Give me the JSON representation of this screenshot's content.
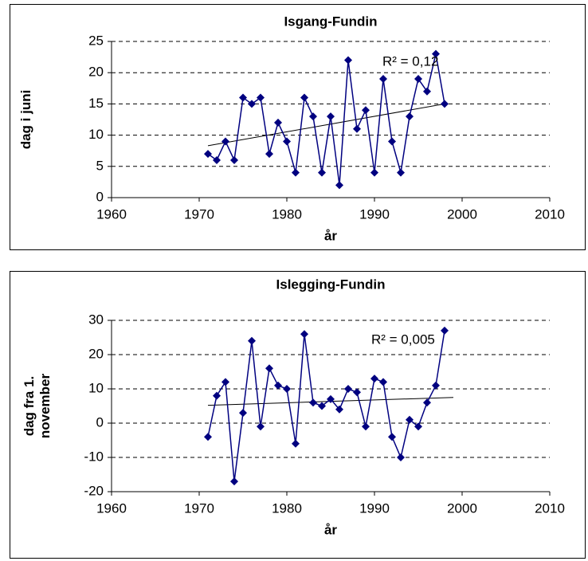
{
  "chart_data": [
    {
      "type": "line",
      "title": "Isgang-Fundin",
      "xlabel": "år",
      "ylabel": [
        "dag i juni"
      ],
      "x": [
        1971,
        1972,
        1973,
        1974,
        1975,
        1976,
        1977,
        1978,
        1979,
        1980,
        1981,
        1982,
        1983,
        1984,
        1985,
        1986,
        1987,
        1988,
        1989,
        1990,
        1991,
        1992,
        1993,
        1994,
        1995,
        1996,
        1997,
        1998
      ],
      "values": [
        7,
        6,
        9,
        6,
        16,
        15,
        16,
        7,
        12,
        9,
        4,
        16,
        13,
        4,
        13,
        2,
        22,
        11,
        14,
        4,
        19,
        9,
        4,
        13,
        19,
        17,
        23,
        15
      ],
      "color": "#000080",
      "trendline": {
        "x": [
          1971,
          1998
        ],
        "values": [
          8.3,
          15
        ]
      },
      "annotation": "R² = 0,12",
      "xlim": [
        1960,
        2010
      ],
      "xticks": [
        1960,
        1970,
        1980,
        1990,
        2000,
        2010
      ],
      "ylim": [
        0,
        25
      ],
      "yticks": [
        0,
        5,
        10,
        15,
        20,
        25
      ],
      "grid": true
    },
    {
      "type": "line",
      "title": "Islegging-Fundin",
      "xlabel": "år",
      "ylabel": [
        "dag fra 1.",
        "november"
      ],
      "x": [
        1971,
        1972,
        1973,
        1974,
        1975,
        1976,
        1977,
        1978,
        1979,
        1980,
        1981,
        1982,
        1983,
        1984,
        1985,
        1986,
        1987,
        1988,
        1989,
        1990,
        1991,
        1992,
        1993,
        1994,
        1995,
        1996,
        1997,
        1998
      ],
      "values": [
        -4,
        8,
        12,
        -17,
        3,
        24,
        -1,
        16,
        11,
        10,
        -6,
        26,
        6,
        5,
        7,
        4,
        10,
        9,
        -1,
        13,
        12,
        -4,
        -10,
        1,
        -1,
        6,
        11,
        27
      ],
      "color": "#000080",
      "trendline": {
        "x": [
          1971,
          1999
        ],
        "values": [
          5.2,
          7.5
        ]
      },
      "annotation": "R² = 0,005",
      "xlim": [
        1960,
        2010
      ],
      "xticks": [
        1960,
        1970,
        1980,
        1990,
        2000,
        2010
      ],
      "ylim": [
        -20,
        30
      ],
      "yticks": [
        -20,
        -10,
        0,
        10,
        20,
        30
      ],
      "grid": true
    }
  ]
}
